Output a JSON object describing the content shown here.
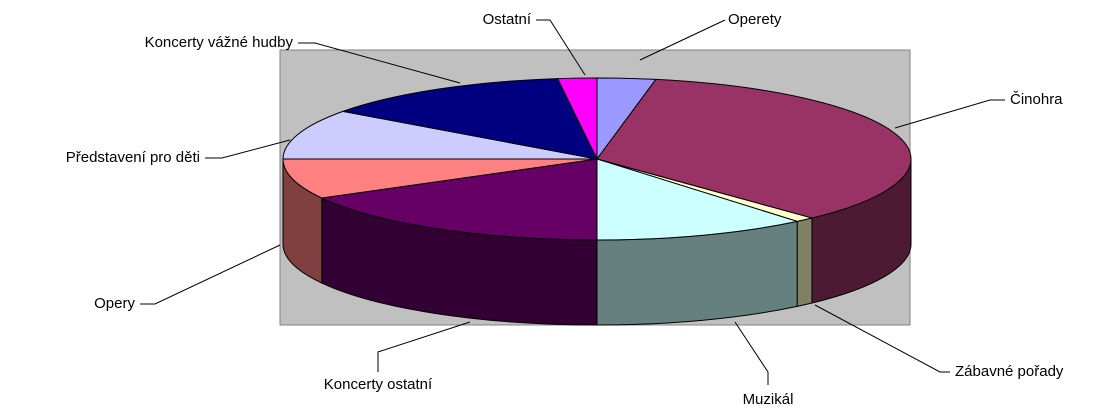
{
  "chart_data": {
    "type": "pie",
    "categories": [
      "Operety",
      "Činohra",
      "Zábavné pořady",
      "Muzikál",
      "Koncerty ostatní",
      "Opery",
      "Představení pro děti",
      "Koncerty vážné hudby",
      "Ostatní"
    ],
    "values": [
      3,
      35,
      1,
      11,
      17,
      8,
      10,
      13,
      2
    ],
    "colors": [
      "#9999ff",
      "#993366",
      "#ffffcc",
      "#ccffff",
      "#660066",
      "#ff8080",
      "#ccccff",
      "#000080",
      "#ff00ff"
    ]
  }
}
